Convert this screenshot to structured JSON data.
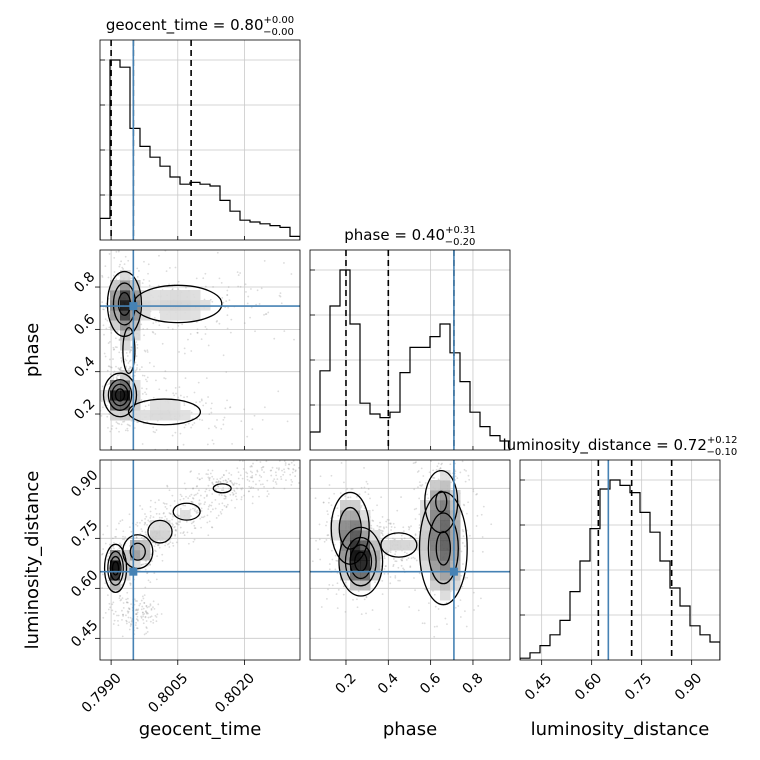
{
  "chart_data": {
    "type": "corner",
    "parameters": [
      "geocent_time",
      "phase",
      "luminosity_distance"
    ],
    "titles": [
      {
        "param": "geocent_time",
        "label": "geocent_time = 0.80",
        "plus": "+0.00",
        "minus": "−0.00"
      },
      {
        "param": "phase",
        "label": "phase = 0.40",
        "plus": "+0.31",
        "minus": "−0.20"
      },
      {
        "param": "luminosity_distance",
        "label": "luminosity_distance = 0.72",
        "plus": "+0.12",
        "minus": "−0.10"
      }
    ],
    "ranges": {
      "geocent_time": [
        0.79875,
        0.80325
      ],
      "phase": [
        0.03,
        0.975
      ],
      "luminosity_distance": [
        0.385,
        0.985
      ]
    },
    "ticks": {
      "geocent_time": {
        "values": [
          0.799,
          0.8005,
          0.802
        ],
        "labels": [
          "0.7990",
          "0.8005",
          "0.8020"
        ]
      },
      "phase": {
        "values": [
          0.2,
          0.4,
          0.6,
          0.8
        ],
        "labels": [
          "0.2",
          "0.4",
          "0.6",
          "0.8"
        ]
      },
      "luminosity_distance": {
        "values": [
          0.45,
          0.6,
          0.75,
          0.9
        ],
        "labels": [
          "0.45",
          "0.60",
          "0.75",
          "0.90"
        ]
      }
    },
    "axis_labels": {
      "x": [
        "geocent_time",
        "phase",
        "luminosity_distance"
      ],
      "y": [
        "phase",
        "luminosity_distance"
      ]
    },
    "truths": {
      "geocent_time": 0.7995,
      "phase": 0.71,
      "luminosity_distance": 0.65
    },
    "truth_color": "#4682b4",
    "quantiles": {
      "geocent_time": [
        0.799,
        0.7995,
        0.8008
      ],
      "phase": [
        0.2,
        0.4,
        0.71
      ],
      "luminosity_distance": [
        0.62,
        0.72,
        0.84
      ]
    },
    "histograms": {
      "geocent_time": {
        "edges": [
          0.79875,
          0.798975,
          0.7992,
          0.799425,
          0.79965,
          0.799875,
          0.8001,
          0.800325,
          0.80055,
          0.800775,
          0.801,
          0.801225,
          0.80145,
          0.801675,
          0.8019,
          0.802125,
          0.80235,
          0.802575,
          0.8028,
          0.803025,
          0.80325
        ],
        "counts": [
          12,
          100,
          96,
          62,
          52,
          46,
          41,
          35,
          31,
          32,
          31,
          30,
          22,
          16,
          11,
          10,
          9,
          8,
          7,
          2
        ]
      },
      "phase": {
        "edges": [
          0.03,
          0.07725,
          0.1245,
          0.17175,
          0.219,
          0.26625,
          0.3135,
          0.36075,
          0.408,
          0.45525,
          0.5025,
          0.54975,
          0.597,
          0.64425,
          0.6915,
          0.73875,
          0.786,
          0.83325,
          0.8805,
          0.92775,
          0.975
        ],
        "counts": [
          10,
          44,
          80,
          100,
          70,
          26,
          20,
          18,
          21,
          43,
          57,
          57,
          63,
          70,
          54,
          38,
          21,
          13,
          8,
          5
        ]
      },
      "luminosity_distance": {
        "edges": [
          0.385,
          0.415,
          0.445,
          0.475,
          0.505,
          0.535,
          0.565,
          0.595,
          0.625,
          0.655,
          0.685,
          0.715,
          0.745,
          0.775,
          0.805,
          0.835,
          0.865,
          0.895,
          0.925,
          0.955,
          0.985
        ],
        "counts": [
          1,
          4,
          8,
          14,
          22,
          38,
          55,
          73,
          95,
          100,
          97,
          93,
          82,
          71,
          55,
          40,
          30,
          19,
          14,
          10
        ]
      }
    },
    "density_2d": {
      "grid": [
        20,
        20
      ],
      "blobs": {
        "phase|geocent_time": [
          {
            "x": 0.7992,
            "y": 0.29,
            "sx": 0.00018,
            "sy": 0.05,
            "w": 1.0
          },
          {
            "x": 0.7993,
            "y": 0.72,
            "sx": 0.0002,
            "sy": 0.08,
            "w": 0.75
          },
          {
            "x": 0.8005,
            "y": 0.72,
            "sx": 0.0009,
            "sy": 0.08,
            "w": 0.22
          },
          {
            "x": 0.8002,
            "y": 0.21,
            "sx": 0.0008,
            "sy": 0.06,
            "w": 0.2
          },
          {
            "x": 0.7994,
            "y": 0.5,
            "sx": 0.00015,
            "sy": 0.12,
            "w": 0.18
          }
        ],
        "luminosity_distance|geocent_time": [
          {
            "x": 0.7991,
            "y": 0.66,
            "sx": 0.00012,
            "sy": 0.035,
            "w": 1.0
          },
          {
            "x": 0.7996,
            "y": 0.71,
            "sx": 0.0002,
            "sy": 0.03,
            "w": 0.5
          },
          {
            "x": 0.8001,
            "y": 0.77,
            "sx": 0.0002,
            "sy": 0.025,
            "w": 0.3
          },
          {
            "x": 0.8007,
            "y": 0.83,
            "sx": 0.0003,
            "sy": 0.025,
            "w": 0.2
          },
          {
            "x": 0.8015,
            "y": 0.9,
            "sx": 0.0003,
            "sy": 0.02,
            "w": 0.15
          },
          {
            "x": 0.8026,
            "y": 0.95,
            "sx": 0.0004,
            "sy": 0.02,
            "w": 0.12
          },
          {
            "x": 0.7996,
            "y": 0.53,
            "sx": 0.0002,
            "sy": 0.02,
            "w": 0.08
          }
        ],
        "luminosity_distance|phase": [
          {
            "x": 0.27,
            "y": 0.68,
            "sx": 0.05,
            "sy": 0.05,
            "w": 1.0
          },
          {
            "x": 0.22,
            "y": 0.78,
            "sx": 0.05,
            "sy": 0.06,
            "w": 0.6
          },
          {
            "x": 0.66,
            "y": 0.72,
            "sx": 0.06,
            "sy": 0.09,
            "w": 0.7
          },
          {
            "x": 0.65,
            "y": 0.86,
            "sx": 0.05,
            "sy": 0.06,
            "w": 0.4
          },
          {
            "x": 0.45,
            "y": 0.73,
            "sx": 0.07,
            "sy": 0.03,
            "w": 0.25
          }
        ]
      }
    },
    "contour_levels": [
      0.12,
      0.35,
      0.6,
      0.85
    ]
  }
}
